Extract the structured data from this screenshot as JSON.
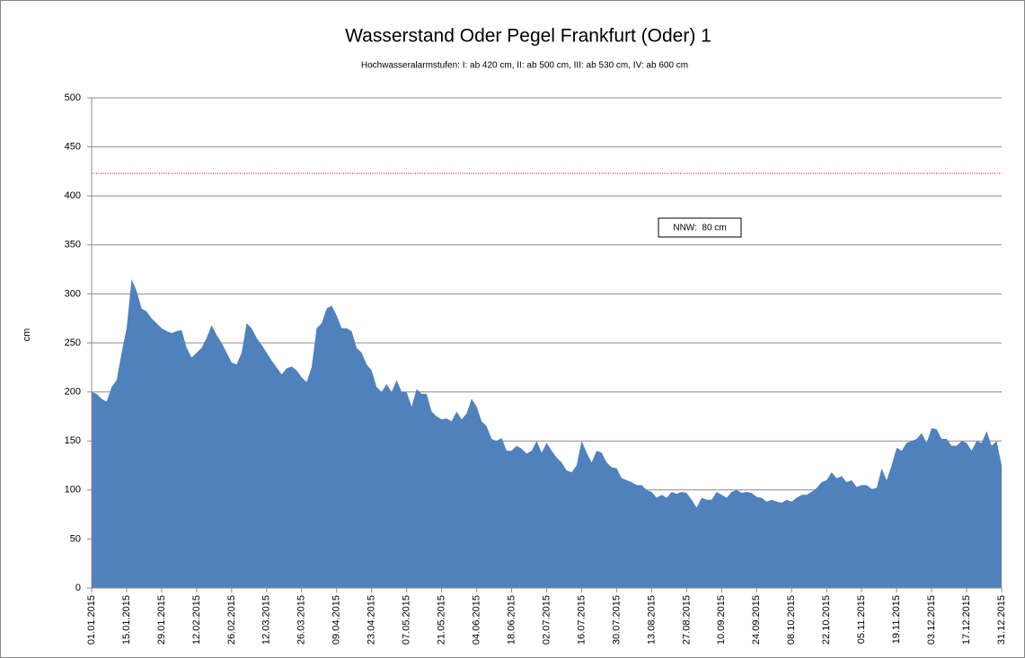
{
  "chart_data": {
    "type": "area",
    "title": "Wasserstand Oder Pegel Frankfurt (Oder) 1",
    "subtitle": "Hochwasseralarmstufen: I: ab 420 cm, II: ab 500 cm, III: ab 530 cm,  IV: ab 600 cm",
    "y_label": "cm",
    "annotation": "NNW:  80 cm",
    "reference_line": {
      "value": 423,
      "color": "#c00000"
    },
    "color": "#4f81bd",
    "grid": true,
    "ylim": [
      0,
      500
    ],
    "yticks": [
      0,
      50,
      100,
      150,
      200,
      250,
      300,
      350,
      400,
      450,
      500
    ],
    "categories": [
      "01.01.2015",
      null,
      null,
      null,
      null,
      null,
      null,
      "15.01.2015",
      null,
      null,
      null,
      null,
      null,
      null,
      "29.01.2015",
      null,
      null,
      null,
      null,
      null,
      null,
      "12.02.2015",
      null,
      null,
      null,
      null,
      null,
      null,
      "26.02.2015",
      null,
      null,
      null,
      null,
      null,
      null,
      "12.03.2015",
      null,
      null,
      null,
      null,
      null,
      null,
      "26.03.2015",
      null,
      null,
      null,
      null,
      null,
      null,
      "09.04.2015",
      null,
      null,
      null,
      null,
      null,
      null,
      "23.04.2015",
      null,
      null,
      null,
      null,
      null,
      null,
      "07.05.2015",
      null,
      null,
      null,
      null,
      null,
      null,
      "21.05.2015",
      null,
      null,
      null,
      null,
      null,
      null,
      "04.06.2015",
      null,
      null,
      null,
      null,
      null,
      null,
      "18.06.2015",
      null,
      null,
      null,
      null,
      null,
      null,
      "02.07.2015",
      null,
      null,
      null,
      null,
      null,
      null,
      "16.07.2015",
      null,
      null,
      null,
      null,
      null,
      null,
      "30.07.2015",
      null,
      null,
      null,
      null,
      null,
      null,
      "13.08.2015",
      null,
      null,
      null,
      null,
      null,
      null,
      "27.08.2015",
      null,
      null,
      null,
      null,
      null,
      null,
      "10.09.2015",
      null,
      null,
      null,
      null,
      null,
      null,
      "24.09.2015",
      null,
      null,
      null,
      null,
      null,
      null,
      "08.10.2015",
      null,
      null,
      null,
      null,
      null,
      null,
      "22.10.2015",
      null,
      null,
      null,
      null,
      null,
      null,
      "05.11.2015",
      null,
      null,
      null,
      null,
      null,
      null,
      "19.11.2015",
      null,
      null,
      null,
      null,
      null,
      null,
      "03.12.2015",
      null,
      null,
      null,
      null,
      null,
      null,
      "17.12.2015",
      null,
      null,
      null,
      null,
      null,
      null,
      "31.12.2015"
    ],
    "values": [
      200,
      198,
      193,
      190,
      205,
      212,
      240,
      265,
      315,
      303,
      285,
      282,
      275,
      270,
      265,
      262,
      260,
      262,
      263,
      245,
      235,
      240,
      245,
      255,
      268,
      258,
      250,
      240,
      230,
      228,
      240,
      270,
      265,
      255,
      248,
      240,
      232,
      225,
      218,
      224,
      226,
      222,
      215,
      210,
      225,
      265,
      270,
      285,
      288,
      278,
      265,
      265,
      262,
      245,
      240,
      228,
      222,
      205,
      200,
      208,
      200,
      212,
      200,
      200,
      185,
      203,
      198,
      198,
      180,
      175,
      172,
      173,
      170,
      180,
      172,
      178,
      193,
      185,
      170,
      165,
      152,
      150,
      153,
      140,
      140,
      145,
      142,
      137,
      140,
      150,
      138,
      148,
      140,
      133,
      128,
      120,
      118,
      125,
      150,
      138,
      128,
      140,
      138,
      128,
      123,
      122,
      112,
      110,
      108,
      105,
      105,
      100,
      98,
      92,
      95,
      92,
      98,
      96,
      98,
      97,
      90,
      82,
      92,
      90,
      90,
      98,
      95,
      92,
      98,
      100,
      97,
      98,
      97,
      93,
      92,
      88,
      90,
      88,
      87,
      90,
      88,
      92,
      95,
      95,
      98,
      102,
      108,
      110,
      118,
      112,
      114,
      108,
      110,
      103,
      105,
      105,
      101,
      102,
      122,
      110,
      125,
      143,
      140,
      148,
      150,
      152,
      158,
      148,
      163,
      162,
      152,
      152,
      145,
      145,
      150,
      148,
      140,
      150,
      148,
      160,
      145,
      150,
      125
    ]
  }
}
